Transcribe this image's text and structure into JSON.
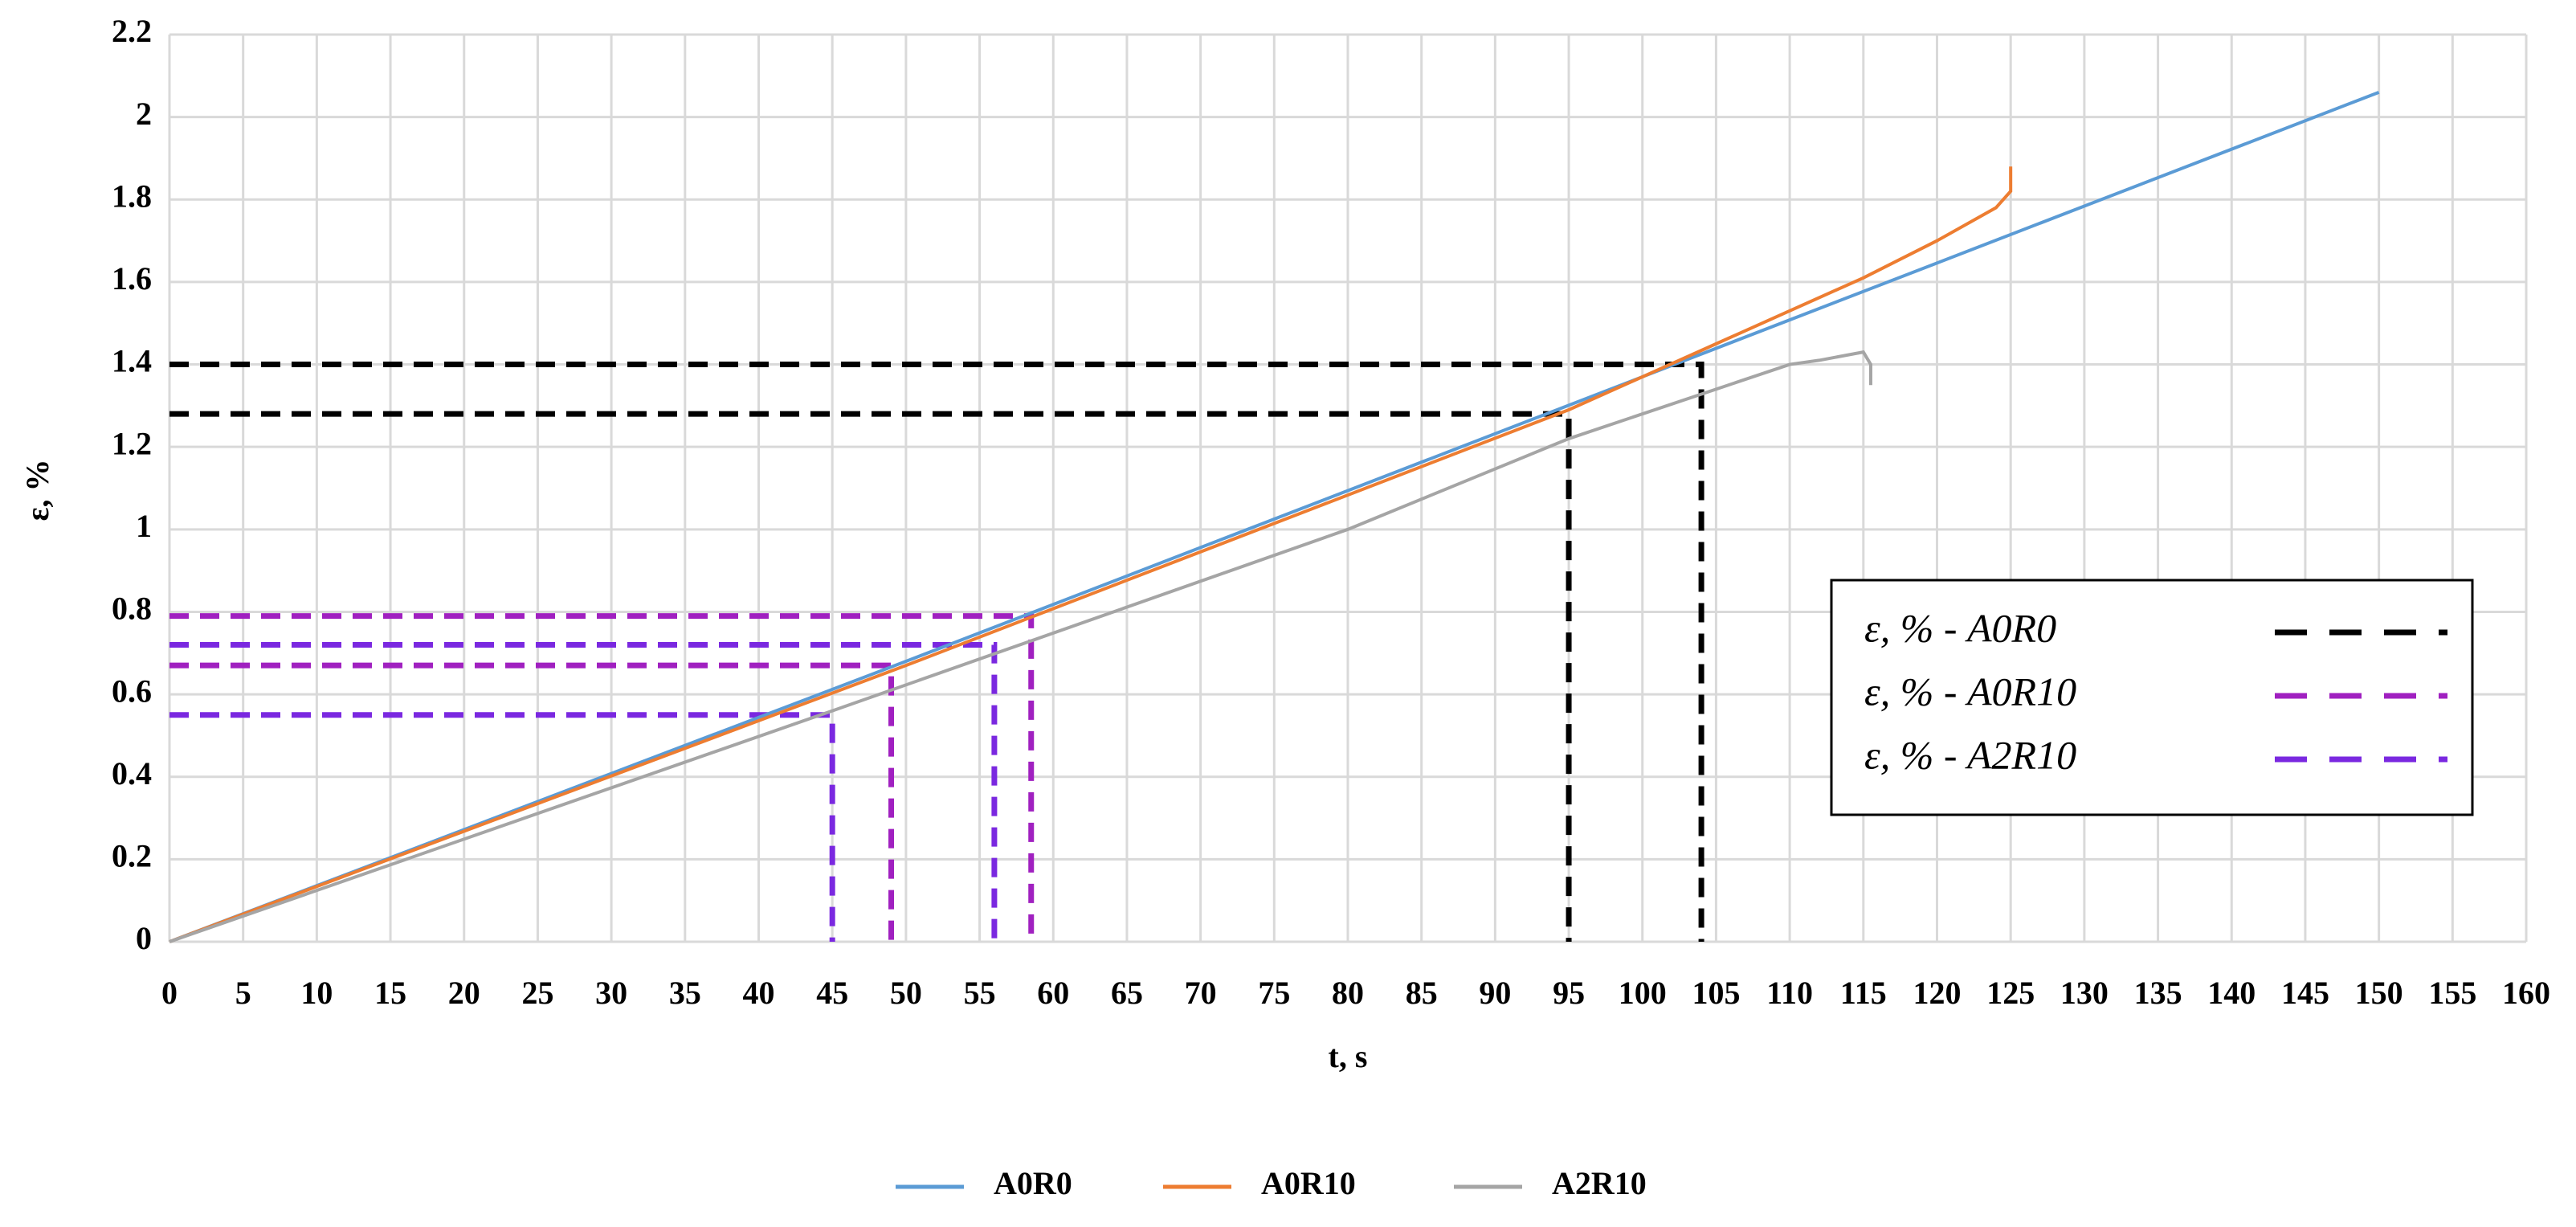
{
  "chart_data": {
    "type": "line",
    "xlabel": "t, s",
    "ylabel": "ε, %",
    "xlim": [
      0,
      160
    ],
    "ylim": [
      0,
      2.2
    ],
    "xticks": [
      0,
      5,
      10,
      15,
      20,
      25,
      30,
      35,
      40,
      45,
      50,
      55,
      60,
      65,
      70,
      75,
      80,
      85,
      90,
      95,
      100,
      105,
      110,
      115,
      120,
      125,
      130,
      135,
      140,
      145,
      150,
      155,
      160
    ],
    "yticks": [
      0,
      0.2,
      0.4,
      0.6,
      0.8,
      1,
      1.2,
      1.4,
      1.6,
      1.8,
      2,
      2.2
    ],
    "grid": true,
    "legend": "bottom",
    "series": [
      {
        "name": "A0R0",
        "color": "#5b9bd5",
        "x": [
          0,
          50,
          100,
          150
        ],
        "values": [
          0,
          0.68,
          1.37,
          2.06
        ]
      },
      {
        "name": "A0R10",
        "color": "#ed7d31",
        "x": [
          0,
          50,
          95,
          105,
          110,
          115,
          120,
          124,
          125,
          125
        ],
        "values": [
          0,
          0.67,
          1.29,
          1.45,
          1.53,
          1.61,
          1.7,
          1.78,
          1.82,
          1.88
        ]
      },
      {
        "name": "A2R10",
        "color": "#a5a5a5",
        "x": [
          0,
          45,
          80,
          95,
          105,
          110,
          112,
          115,
          115.5,
          115.5
        ],
        "values": [
          0,
          0.56,
          1,
          1.22,
          1.34,
          1.4,
          1.41,
          1.43,
          1.4,
          1.35
        ]
      }
    ],
    "reference_series": [
      {
        "name": "ε, % - A0R0",
        "color": "#000000",
        "x": [
          104,
          95
        ],
        "values": [
          1.4,
          1.28
        ]
      },
      {
        "name": "ε, % - A0R10",
        "color": "#a020c0",
        "x": [
          58.5,
          49
        ],
        "values": [
          0.79,
          0.67
        ]
      },
      {
        "name": "ε, % - A2R10",
        "color": "#7a28e0",
        "x": [
          56,
          45
        ],
        "values": [
          0.72,
          0.55
        ]
      }
    ]
  }
}
